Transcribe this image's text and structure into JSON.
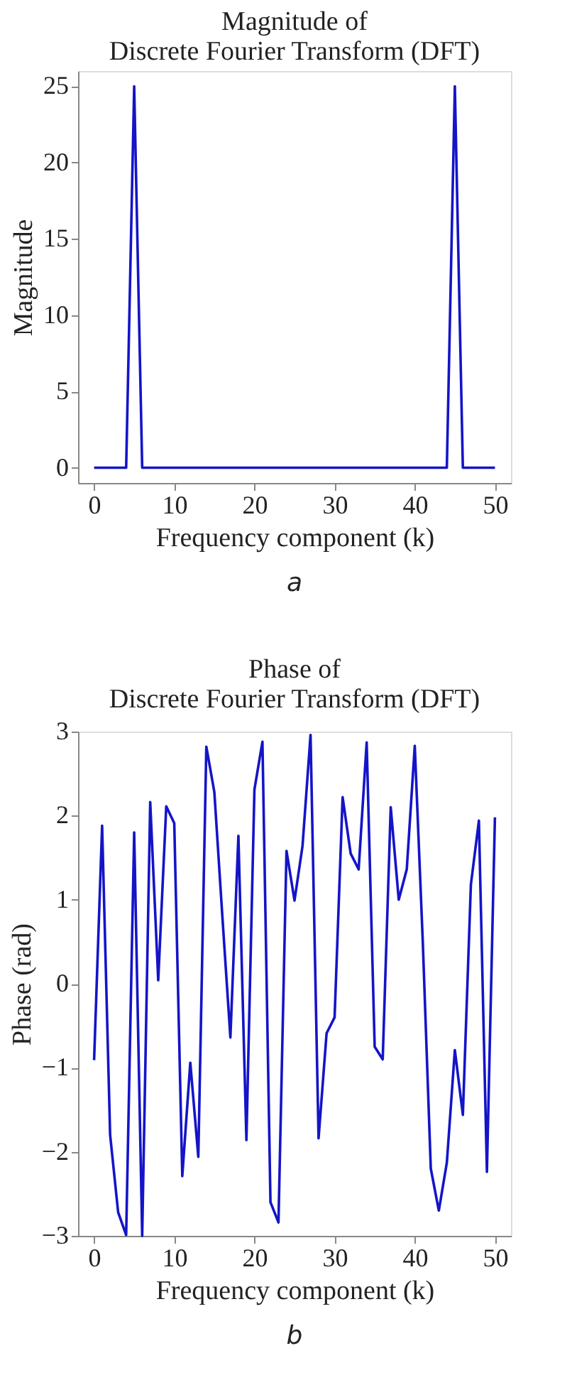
{
  "chart_data": [
    {
      "type": "line",
      "title": "Magnitude of\nDiscrete Fourier Transform (DFT)",
      "xlabel": "Frequency component (k)",
      "ylabel": "Magnitude",
      "x": [
        0,
        1,
        2,
        3,
        4,
        5,
        6,
        7,
        8,
        9,
        10,
        11,
        12,
        13,
        14,
        15,
        16,
        17,
        18,
        19,
        20,
        21,
        22,
        23,
        24,
        25,
        26,
        27,
        28,
        29,
        30,
        31,
        32,
        33,
        34,
        35,
        36,
        37,
        38,
        39,
        40,
        41,
        42,
        43,
        44,
        45,
        46,
        47,
        48,
        49,
        50
      ],
      "series": [
        {
          "color": "#1414c8",
          "values": [
            0,
            0,
            0,
            0,
            0,
            25,
            0,
            0,
            0,
            0,
            0,
            0,
            0,
            0,
            0,
            0,
            0,
            0,
            0,
            0,
            0,
            0,
            0,
            0,
            0,
            0,
            0,
            0,
            0,
            0,
            0,
            0,
            0,
            0,
            0,
            0,
            0,
            0,
            0,
            0,
            0,
            0,
            0,
            0,
            0,
            25,
            0,
            0,
            0,
            0,
            0
          ]
        }
      ],
      "xlim": [
        -2,
        52
      ],
      "xticks": [
        0,
        10,
        20,
        30,
        40,
        50
      ],
      "ylim": [
        -1,
        26
      ],
      "yticks": [
        0,
        5,
        10,
        15,
        20,
        25
      ],
      "grid": false,
      "marker": "none",
      "line_style": "solid",
      "annotations": [
        "a"
      ]
    },
    {
      "type": "line",
      "title": "Phase of\nDiscrete Fourier Transform (DFT)",
      "xlabel": "Frequency component (k)",
      "ylabel": "Phase (rad)",
      "x": [
        0,
        1,
        2,
        3,
        4,
        5,
        6,
        7,
        8,
        9,
        10,
        11,
        12,
        13,
        14,
        15,
        16,
        17,
        18,
        19,
        20,
        21,
        22,
        23,
        24,
        25,
        26,
        27,
        28,
        29,
        30,
        31,
        32,
        33,
        34,
        35,
        36,
        37,
        38,
        39,
        40,
        41,
        42,
        43,
        44,
        45,
        46,
        47,
        48,
        49,
        50
      ],
      "series": [
        {
          "color": "#1414c8",
          "values": [
            -0.91,
            1.88,
            -1.8,
            -2.72,
            -2.99,
            1.8,
            -3,
            2.16,
            0.04,
            2.11,
            1.91,
            -2.29,
            -0.94,
            -2.06,
            2.82,
            2.28,
            0.8,
            -0.64,
            1.76,
            -1.86,
            2.31,
            2.88,
            -2.6,
            -2.84,
            1.58,
            0.99,
            1.64,
            2.96,
            -1.84,
            -0.59,
            -0.4,
            2.22,
            1.55,
            1.36,
            2.87,
            -0.75,
            -0.9,
            2.1,
            1.0,
            1.36,
            2.83,
            0.5,
            -2.2,
            -2.7,
            -2.13,
            -0.79,
            -1.56,
            1.18,
            1.94,
            -2.24,
            1.98
          ]
        }
      ],
      "xlim": [
        -2,
        52
      ],
      "xticks": [
        0,
        10,
        20,
        30,
        40,
        50
      ],
      "ylim": [
        -3,
        3
      ],
      "yticks": [
        -3,
        -2,
        -1,
        0,
        1,
        2,
        3
      ],
      "grid": false,
      "marker": "none",
      "line_style": "solid",
      "annotations": [
        "b"
      ]
    }
  ]
}
